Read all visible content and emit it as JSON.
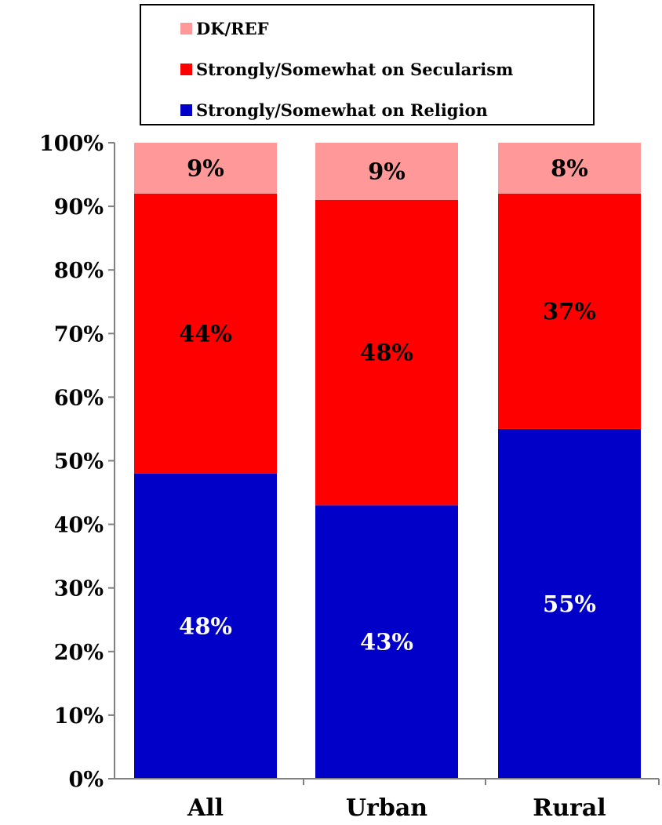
{
  "chart_data": {
    "type": "bar",
    "stacked": true,
    "categories": [
      "All",
      "Urban",
      "Rural"
    ],
    "series": [
      {
        "name": "Strongly/Somewhat on Religion",
        "values": [
          48,
          43,
          55
        ],
        "labels": [
          "48%",
          "43%",
          "55%"
        ],
        "color": "#0000c8",
        "label_color": "#ffffff"
      },
      {
        "name": "Strongly/Somewhat on Secularism",
        "values": [
          44,
          48,
          37
        ],
        "labels": [
          "44%",
          "48%",
          "37%"
        ],
        "color": "#ff0000",
        "label_color": "#000000"
      },
      {
        "name": "DK/REF",
        "values": [
          9,
          9,
          8
        ],
        "labels": [
          "9%",
          "9%",
          "8%"
        ],
        "color": "#ff9999",
        "label_color": "#000000"
      }
    ],
    "ylim": [
      0,
      100
    ],
    "yticks": [
      0,
      10,
      20,
      30,
      40,
      50,
      60,
      70,
      80,
      90,
      100
    ],
    "ytick_labels": [
      "0%",
      "10%",
      "20%",
      "30%",
      "40%",
      "50%",
      "60%",
      "70%",
      "80%",
      "90%",
      "100%"
    ],
    "legend": {
      "placement": "top",
      "order": [
        "DK/REF",
        "Strongly/Somewhat on Secularism",
        "Strongly/Somewhat on Religion"
      ]
    },
    "grid": false
  }
}
